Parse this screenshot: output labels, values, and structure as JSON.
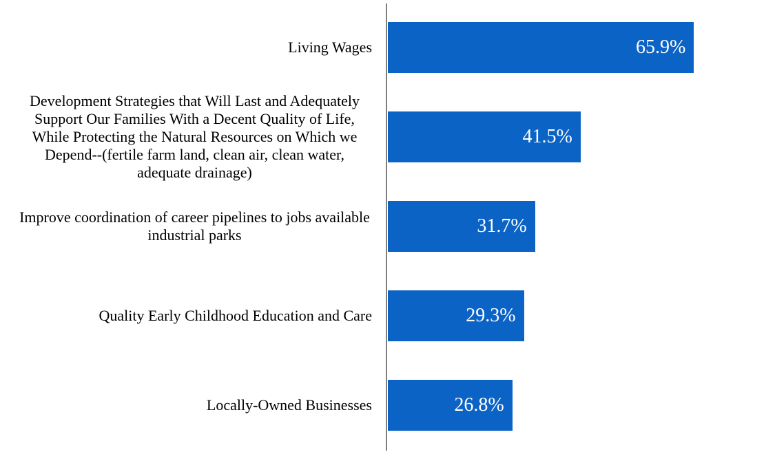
{
  "chart_data": {
    "type": "bar",
    "orientation": "horizontal",
    "categories": [
      "Living Wages",
      "Development Strategies that Will Last and Adequately Support Our Families With a Decent Quality of Life, While Protecting the Natural Resources on Which we Depend--(fertile farm land, clean air, clean water, adequate drainage)",
      "Improve coordination of career pipelines to jobs available industrial parks",
      "Quality Early Childhood Education and Care",
      "Locally-Owned Businesses"
    ],
    "values": [
      65.9,
      41.5,
      31.7,
      29.3,
      26.8
    ],
    "value_labels": [
      "65.9%",
      "41.5%",
      "31.7%",
      "29.3%",
      "26.8%"
    ],
    "xlim": [
      0,
      70
    ],
    "grid": false,
    "legend": false,
    "value_label_position": "inside-end",
    "colors": {
      "bar": "#0B63C5",
      "value_label": "#FFFFFF",
      "category_label": "#000000",
      "axis_line": "#7F7F7F",
      "background": "#FFFFFF"
    }
  }
}
